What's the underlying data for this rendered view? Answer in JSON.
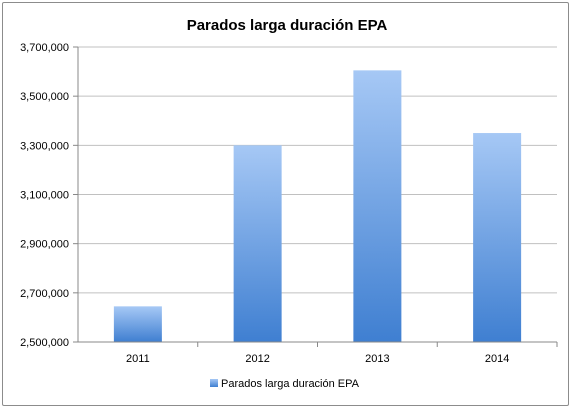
{
  "chart_data": {
    "type": "bar",
    "title": "Parados larga duración EPA",
    "categories": [
      "2011",
      "2012",
      "2013",
      "2014"
    ],
    "series": [
      {
        "name": "Parados larga duración EPA",
        "values": [
          2645000,
          3300000,
          3605000,
          3350000
        ]
      }
    ],
    "ylim": [
      2500000,
      3700000
    ],
    "yticks": [
      "2,500,000",
      "2,700,000",
      "2,900,000",
      "3,100,000",
      "3,300,000",
      "3,500,000",
      "3,700,000"
    ],
    "grid": true,
    "legend_position": "bottom",
    "colors": {
      "bar_top": "#a6c8f5",
      "bar_bottom": "#3f7fd1",
      "axis": "#888888",
      "grid": "#c0c0c0"
    }
  }
}
